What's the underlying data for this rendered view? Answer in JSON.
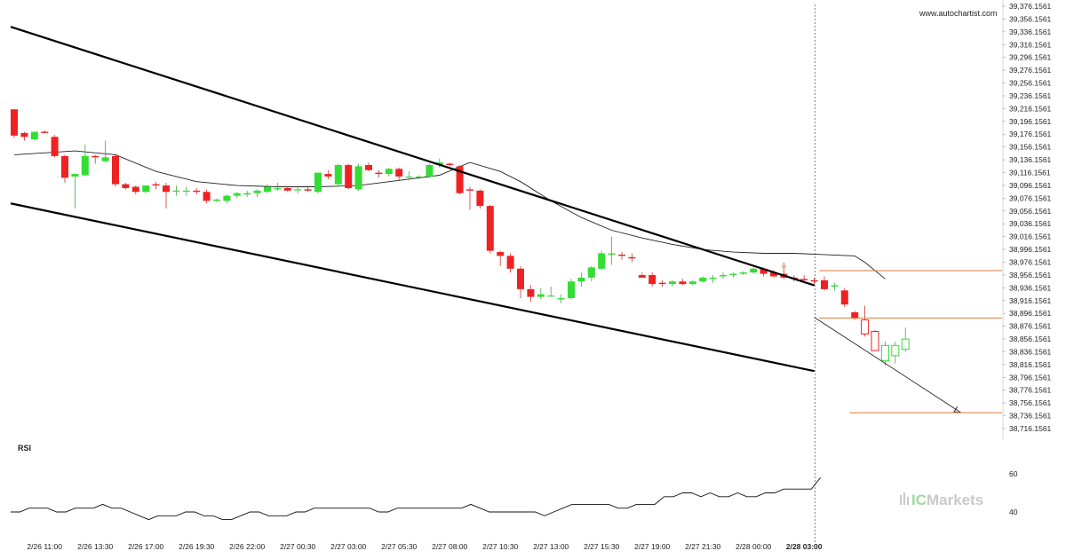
{
  "watermark_site": "www.autochartist.com",
  "rsi_label": "RSI",
  "brand": {
    "prefix": "IC",
    "suffix": "Markets"
  },
  "colors": {
    "up": "#33dd33",
    "down": "#ee2222",
    "trend": "#000000",
    "ma": "#222222",
    "level": "#e07a3a",
    "vline": "#666666"
  },
  "chart_data": {
    "type": "candlestick",
    "price_axis": {
      "min": 38716.1561,
      "max": 39376.1561,
      "step": 20,
      "tick_labels": [
        "39,376.1561",
        "39,356.1561",
        "39,336.1561",
        "39,316.1561",
        "39,296.1561",
        "39,276.1561",
        "39,256.1561",
        "39,236.1561",
        "39,216.1561",
        "39,196.1561",
        "39,176.1561",
        "39,156.1561",
        "39,136.1561",
        "39,116.1561",
        "39,096.1561",
        "39,076.1561",
        "39,056.1561",
        "39,036.1561",
        "39,016.1561",
        "38,996.1561",
        "38,976.1561",
        "38,956.1561",
        "38,936.1561",
        "38,916.1561",
        "38,896.1561",
        "38,876.1561",
        "38,856.1561",
        "38,836.1561",
        "38,816.1561",
        "38,796.1561",
        "38,776.1561",
        "38,756.1561",
        "38,736.1561",
        "38,716.1561"
      ]
    },
    "time_labels": [
      {
        "text": "2/26 11:00",
        "bar": 3
      },
      {
        "text": "2/26 13:30",
        "bar": 8
      },
      {
        "text": "2/26 17:00",
        "bar": 13
      },
      {
        "text": "2/26 19:30",
        "bar": 18
      },
      {
        "text": "2/26 22:00",
        "bar": 23
      },
      {
        "text": "2/27 00:30",
        "bar": 28
      },
      {
        "text": "2/27 03:00",
        "bar": 33
      },
      {
        "text": "2/27 05:30",
        "bar": 38
      },
      {
        "text": "2/27 08:00",
        "bar": 43
      },
      {
        "text": "2/27 10:30",
        "bar": 48
      },
      {
        "text": "2/27 13:00",
        "bar": 53
      },
      {
        "text": "2/27 15:30",
        "bar": 58
      },
      {
        "text": "2/27 19:00",
        "bar": 63
      },
      {
        "text": "2/27 21:30",
        "bar": 68
      },
      {
        "text": "2/28 00:00",
        "bar": 73
      },
      {
        "text": "2/28 03:00",
        "bar": 78,
        "bold": true
      }
    ],
    "candles": [
      [
        39215,
        39215,
        39170,
        39174
      ],
      [
        39178,
        39180,
        39166,
        39172
      ],
      [
        39168,
        39180,
        39166,
        39180
      ],
      [
        39180,
        39182,
        39178,
        39178
      ],
      [
        39172,
        39175,
        39140,
        39142
      ],
      [
        39142,
        39144,
        39100,
        39108
      ],
      [
        39110,
        39112,
        39060,
        39114
      ],
      [
        39112,
        39160,
        39110,
        39142
      ],
      [
        39142,
        39144,
        39130,
        39140
      ],
      [
        39134,
        39166,
        39132,
        39140
      ],
      [
        39142,
        39146,
        39094,
        39098
      ],
      [
        39098,
        39100,
        39090,
        39092
      ],
      [
        39094,
        39096,
        39082,
        39086
      ],
      [
        39086,
        39096,
        39084,
        39096
      ],
      [
        39098,
        39102,
        39090,
        39096
      ],
      [
        39096,
        39100,
        39060,
        39086
      ],
      [
        39088,
        39096,
        39080,
        39088
      ],
      [
        39088,
        39094,
        39080,
        39088
      ],
      [
        39088,
        39092,
        39082,
        39086
      ],
      [
        39086,
        39090,
        39068,
        39072
      ],
      [
        39072,
        39076,
        39070,
        39074
      ],
      [
        39072,
        39082,
        39068,
        39080
      ],
      [
        39080,
        39086,
        39076,
        39084
      ],
      [
        39082,
        39088,
        39078,
        39084
      ],
      [
        39084,
        39090,
        39078,
        39088
      ],
      [
        39086,
        39098,
        39084,
        39094
      ],
      [
        39090,
        39100,
        39088,
        39092
      ],
      [
        39092,
        39094,
        39086,
        39088
      ],
      [
        39090,
        39094,
        39084,
        39090
      ],
      [
        39090,
        39094,
        39086,
        39088
      ],
      [
        39086,
        39116,
        39084,
        39116
      ],
      [
        39114,
        39120,
        39106,
        39110
      ],
      [
        39098,
        39130,
        39096,
        39128
      ],
      [
        39128,
        39130,
        39090,
        39092
      ],
      [
        39090,
        39130,
        39088,
        39126
      ],
      [
        39128,
        39132,
        39118,
        39120
      ],
      [
        39116,
        39120,
        39108,
        39114
      ],
      [
        39114,
        39124,
        39110,
        39122
      ],
      [
        39122,
        39124,
        39104,
        39110
      ],
      [
        39110,
        39118,
        39104,
        39110
      ],
      [
        39110,
        39112,
        39106,
        39110
      ],
      [
        39110,
        39130,
        39108,
        39128
      ],
      [
        39128,
        39138,
        39124,
        39132
      ],
      [
        39130,
        39132,
        39126,
        39128
      ],
      [
        39126,
        39128,
        39082,
        39084
      ],
      [
        39090,
        39094,
        39058,
        39088
      ],
      [
        39088,
        39090,
        39060,
        39064
      ],
      [
        39064,
        39066,
        38990,
        38994
      ],
      [
        38992,
        38994,
        38970,
        38986
      ],
      [
        38986,
        38990,
        38960,
        38966
      ],
      [
        38966,
        38970,
        38920,
        38934
      ],
      [
        38934,
        38940,
        38914,
        38922
      ],
      [
        38922,
        38936,
        38918,
        38926
      ],
      [
        38924,
        38938,
        38922,
        38924
      ],
      [
        38918,
        38926,
        38912,
        38920
      ],
      [
        38920,
        38950,
        38918,
        38946
      ],
      [
        38946,
        38960,
        38938,
        38952
      ],
      [
        38952,
        38970,
        38946,
        38968
      ],
      [
        38966,
        38994,
        38964,
        38990
      ],
      [
        38988,
        39016,
        38972,
        38990
      ],
      [
        38988,
        38992,
        38980,
        38986
      ],
      [
        38984,
        38990,
        38976,
        38982
      ],
      [
        38956,
        38960,
        38952,
        38952
      ],
      [
        38956,
        38960,
        38938,
        38942
      ],
      [
        38944,
        38948,
        38938,
        38942
      ],
      [
        38942,
        38948,
        38938,
        38946
      ],
      [
        38946,
        38950,
        38940,
        38942
      ],
      [
        38942,
        38948,
        38940,
        38946
      ],
      [
        38946,
        38954,
        38944,
        38952
      ],
      [
        38950,
        38956,
        38944,
        38952
      ],
      [
        38954,
        38960,
        38950,
        38956
      ],
      [
        38956,
        38960,
        38952,
        38958
      ],
      [
        38958,
        38962,
        38956,
        38960
      ],
      [
        38960,
        38968,
        38958,
        38966
      ],
      [
        38966,
        38968,
        38954,
        38958
      ],
      [
        38960,
        38964,
        38952,
        38954
      ],
      [
        38958,
        38970,
        38950,
        38952
      ],
      [
        38952,
        38956,
        38946,
        38950
      ],
      [
        38950,
        38956,
        38944,
        38948
      ],
      [
        38948,
        38952,
        38940,
        38946
      ],
      [
        38948,
        38954,
        38932,
        38934
      ],
      [
        38938,
        38944,
        38932,
        38940
      ],
      [
        38932,
        38936,
        38906,
        38910
      ],
      [
        38898,
        38900,
        38886,
        38888
      ],
      [
        38886,
        38908,
        38860,
        38864
      ],
      [
        38868,
        38870,
        38842,
        38838
      ],
      [
        38822,
        38852,
        38814,
        38846
      ],
      [
        38830,
        38852,
        38818,
        38846
      ],
      [
        38840,
        38874,
        38836,
        38856
      ]
    ],
    "moving_average": [
      [
        0,
        39144
      ],
      [
        6,
        39150
      ],
      [
        10,
        39144
      ],
      [
        14,
        39118
      ],
      [
        18,
        39102
      ],
      [
        22,
        39096
      ],
      [
        26,
        39094
      ],
      [
        30,
        39094
      ],
      [
        34,
        39096
      ],
      [
        38,
        39104
      ],
      [
        42,
        39112
      ],
      [
        45,
        39132
      ],
      [
        48,
        39118
      ],
      [
        50,
        39102
      ],
      [
        53,
        39072
      ],
      [
        56,
        39046
      ],
      [
        59,
        39026
      ],
      [
        62,
        39014
      ],
      [
        65,
        39004
      ],
      [
        68,
        38996
      ],
      [
        71,
        38992
      ],
      [
        74,
        38990
      ],
      [
        77,
        38990
      ],
      [
        80,
        38988
      ],
      [
        83,
        38986
      ],
      [
        84,
        38976
      ],
      [
        86,
        38950
      ]
    ],
    "channel_upper": [
      [
        0,
        39344
      ],
      [
        79,
        38940
      ]
    ],
    "channel_lower": [
      [
        0,
        39068
      ],
      [
        79,
        38806
      ]
    ],
    "projection_arrow": [
      [
        79,
        38890
      ],
      [
        93.5,
        38741
      ]
    ],
    "target_levels": [
      {
        "price": 38963,
        "from": 79.5
      },
      {
        "price": 38889,
        "from": 79.5
      },
      {
        "price": 38741,
        "from": 82.5
      }
    ],
    "breakout_marker": {
      "text": "A",
      "bar": 76,
      "price": 38967
    },
    "current_bar": 79,
    "rsi": {
      "tick_labels": [
        {
          "value": 60,
          "text": "60"
        },
        {
          "value": 40,
          "text": "40"
        }
      ],
      "values": [
        40,
        40,
        42,
        42,
        42,
        40,
        40,
        42,
        42,
        42,
        44,
        42,
        42,
        40,
        38,
        36,
        38,
        38,
        38,
        40,
        40,
        38,
        38,
        36,
        36,
        38,
        40,
        40,
        38,
        38,
        38,
        40,
        40,
        42,
        42,
        42,
        42,
        42,
        42,
        42,
        40,
        40,
        42,
        42,
        42,
        42,
        42,
        42,
        42,
        42,
        44,
        42,
        40,
        40,
        40,
        40,
        40,
        40,
        38,
        40,
        42,
        44,
        44,
        44,
        44,
        44,
        42,
        42,
        44,
        44,
        44,
        48,
        48,
        50,
        50,
        48,
        50,
        48,
        48,
        50,
        48,
        48,
        50,
        50,
        52,
        52,
        52,
        52,
        58
      ]
    }
  }
}
